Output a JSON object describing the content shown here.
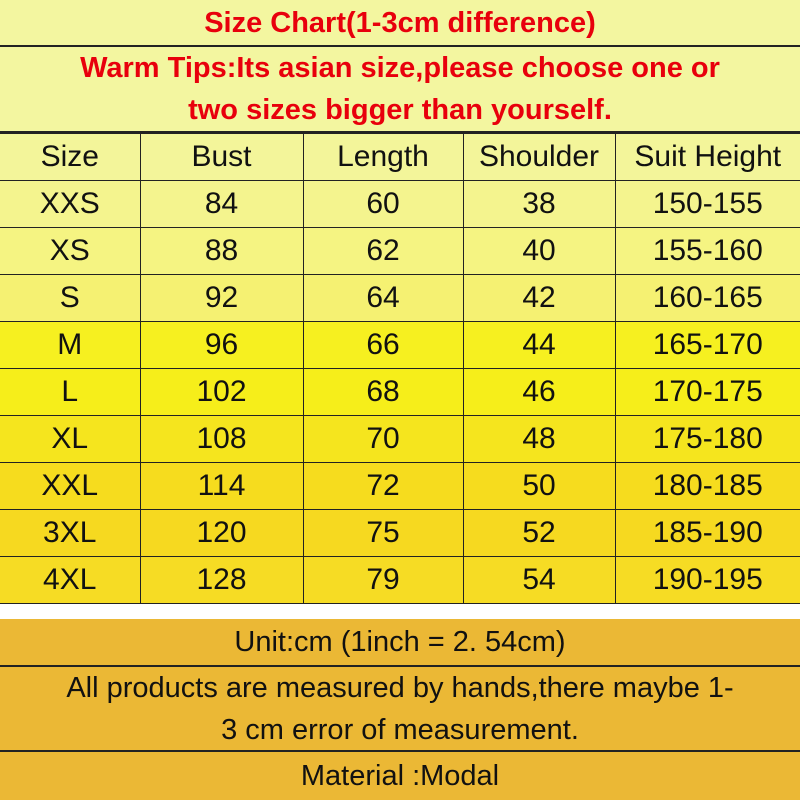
{
  "title": "Size Chart(1-3cm difference)",
  "tips": [
    "Warm Tips:Its asian size,please choose one or",
    "two sizes bigger than yourself."
  ],
  "headers": [
    "Size",
    "Bust",
    "Length",
    "Shoulder",
    "Suit Height"
  ],
  "rows": [
    [
      "XXS",
      "84",
      "60",
      "38",
      "150-155"
    ],
    [
      "XS",
      "88",
      "62",
      "40",
      "155-160"
    ],
    [
      "S",
      "92",
      "64",
      "42",
      "160-165"
    ],
    [
      "M",
      "96",
      "66",
      "44",
      "165-170"
    ],
    [
      "L",
      "102",
      "68",
      "46",
      "170-175"
    ],
    [
      "XL",
      "108",
      "70",
      "48",
      "175-180"
    ],
    [
      "XXL",
      "114",
      "72",
      "50",
      "180-185"
    ],
    [
      "3XL",
      "120",
      "75",
      "52",
      "185-190"
    ],
    [
      "4XL",
      "128",
      "79",
      "54",
      "190-195"
    ]
  ],
  "unit_note": "Unit:cm (1inch = 2. 54cm)",
  "measure_note": [
    "All products are measured by hands,there maybe 1-",
    "3 cm error of measurement."
  ],
  "material": "Material :Modal",
  "colors": {
    "heading_text": "#e8000c",
    "header_bg": "#f3f59a",
    "row_bg": [
      "#f4f48e",
      "#f5f482",
      "#f5f172",
      "#f6f020",
      "#f6ee1a",
      "#f5e51e",
      "#f6dc1e",
      "#f6d920",
      "#f6dc24"
    ],
    "footer_bg": "#ebb835"
  }
}
